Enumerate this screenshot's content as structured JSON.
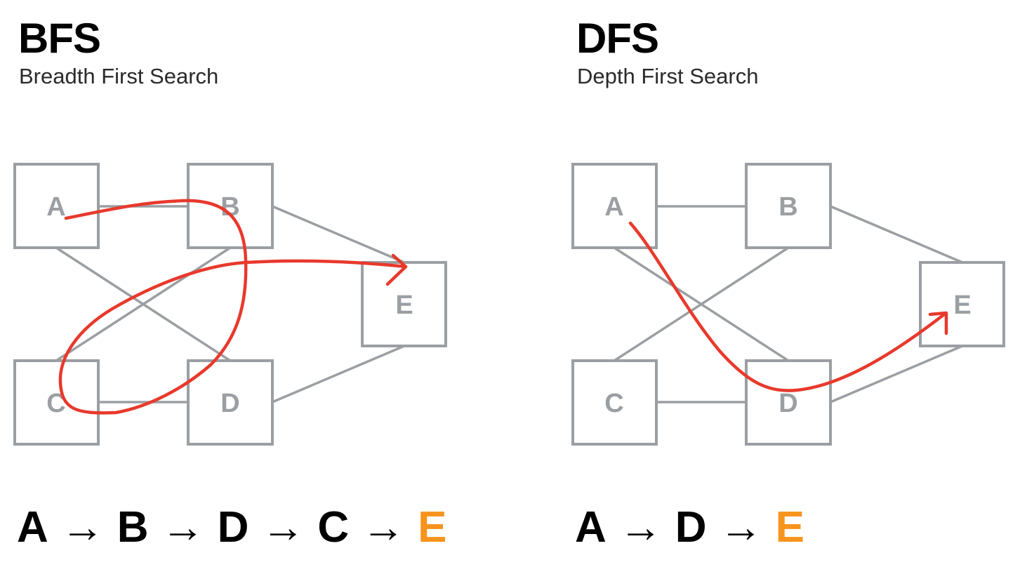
{
  "colors": {
    "node_stroke": "#9b9fa3",
    "node_text": "#9b9fa3",
    "traversal_path": "#e8392c",
    "target_highlight": "#f7941d",
    "text": "#000000"
  },
  "panels": [
    {
      "id": "bfs",
      "title": "BFS",
      "subtitle": "Breadth First Search",
      "nodes": [
        {
          "id": "A",
          "label": "A"
        },
        {
          "id": "B",
          "label": "B"
        },
        {
          "id": "C",
          "label": "C"
        },
        {
          "id": "D",
          "label": "D"
        },
        {
          "id": "E",
          "label": "E"
        }
      ],
      "edges": [
        [
          "A",
          "B"
        ],
        [
          "A",
          "D"
        ],
        [
          "B",
          "C"
        ],
        [
          "C",
          "D"
        ],
        [
          "B",
          "E"
        ],
        [
          "D",
          "E"
        ]
      ],
      "traversal_order": [
        "A",
        "B",
        "D",
        "C",
        "E"
      ],
      "sequence": [
        {
          "label": "A",
          "target": false
        },
        {
          "label": "B",
          "target": false
        },
        {
          "label": "D",
          "target": false
        },
        {
          "label": "C",
          "target": false
        },
        {
          "label": "E",
          "target": true
        }
      ],
      "arrow_glyph": "→"
    },
    {
      "id": "dfs",
      "title": "DFS",
      "subtitle": "Depth First Search",
      "nodes": [
        {
          "id": "A",
          "label": "A"
        },
        {
          "id": "B",
          "label": "B"
        },
        {
          "id": "C",
          "label": "C"
        },
        {
          "id": "D",
          "label": "D"
        },
        {
          "id": "E",
          "label": "E"
        }
      ],
      "edges": [
        [
          "A",
          "B"
        ],
        [
          "A",
          "D"
        ],
        [
          "B",
          "C"
        ],
        [
          "C",
          "D"
        ],
        [
          "B",
          "E"
        ],
        [
          "D",
          "E"
        ]
      ],
      "traversal_order": [
        "A",
        "D",
        "E"
      ],
      "sequence": [
        {
          "label": "A",
          "target": false
        },
        {
          "label": "D",
          "target": false
        },
        {
          "label": "E",
          "target": true
        }
      ],
      "arrow_glyph": "→"
    }
  ]
}
